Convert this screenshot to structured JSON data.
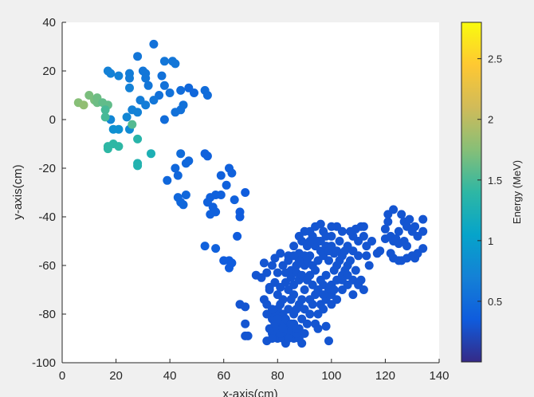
{
  "chart_data": {
    "type": "scatter",
    "title": "",
    "xlabel": "x-axis(cm)",
    "ylabel": "y-axis(cm)",
    "xlim": [
      0,
      140
    ],
    "ylim": [
      -100,
      40
    ],
    "xticks": [
      0,
      20,
      40,
      60,
      80,
      100,
      120,
      140
    ],
    "yticks": [
      40,
      20,
      0,
      -20,
      -40,
      -60,
      -80,
      -100
    ],
    "colorbar": {
      "label": "Energy (MeV)",
      "lim": [
        0,
        2.8
      ],
      "ticks": [
        0.5,
        1,
        1.5,
        2,
        2.5
      ],
      "tick_labels": [
        "0.5",
        "1",
        "1.5",
        "2",
        "2.5"
      ]
    },
    "colormap": "parula",
    "grid": false,
    "background_color": "#f0f0f0",
    "axes_color": "#ffffff",
    "points": [
      [
        34,
        31,
        0.55
      ],
      [
        28,
        26,
        0.6
      ],
      [
        38,
        24,
        0.6
      ],
      [
        41,
        24,
        0.6
      ],
      [
        42,
        23,
        0.6
      ],
      [
        17,
        20,
        0.7
      ],
      [
        18,
        19,
        0.7
      ],
      [
        21,
        18,
        0.7
      ],
      [
        25,
        19,
        0.65
      ],
      [
        25,
        17,
        0.65
      ],
      [
        30,
        20,
        0.6
      ],
      [
        31,
        19,
        0.6
      ],
      [
        31,
        17,
        0.6
      ],
      [
        37,
        18,
        0.55
      ],
      [
        32,
        14,
        0.6
      ],
      [
        38,
        14,
        0.55
      ],
      [
        25,
        13,
        0.7
      ],
      [
        44,
        12,
        0.5
      ],
      [
        47,
        13,
        0.45
      ],
      [
        49,
        11,
        0.45
      ],
      [
        53,
        12,
        0.5
      ],
      [
        54,
        10,
        0.5
      ],
      [
        40,
        11,
        0.55
      ],
      [
        36,
        10,
        0.55
      ],
      [
        34,
        8,
        0.6
      ],
      [
        29,
        8,
        0.65
      ],
      [
        31,
        6,
        0.65
      ],
      [
        26,
        4,
        0.7
      ],
      [
        28,
        3,
        0.7
      ],
      [
        44,
        4,
        0.55
      ],
      [
        42,
        3,
        0.55
      ],
      [
        45,
        6,
        0.55
      ],
      [
        38,
        0,
        0.5
      ],
      [
        24,
        1,
        0.75
      ],
      [
        18,
        0,
        0.75
      ],
      [
        19,
        -4,
        0.85
      ],
      [
        21,
        -4,
        0.85
      ],
      [
        25,
        -4,
        0.8
      ],
      [
        6,
        7,
        1.75
      ],
      [
        8,
        6,
        1.8
      ],
      [
        10,
        10,
        1.7
      ],
      [
        12,
        8,
        1.7
      ],
      [
        13,
        9,
        1.65
      ],
      [
        13,
        7,
        1.65
      ],
      [
        15,
        7,
        1.6
      ],
      [
        17,
        6,
        1.6
      ],
      [
        16,
        4,
        1.5
      ],
      [
        16,
        1,
        1.5
      ],
      [
        26,
        -2,
        1.55
      ],
      [
        28,
        -8,
        1.35
      ],
      [
        17,
        -11,
        1.4
      ],
      [
        17,
        -12,
        1.4
      ],
      [
        19,
        -10,
        1.4
      ],
      [
        21,
        -11,
        1.4
      ],
      [
        28,
        -18,
        1.3
      ],
      [
        28,
        -19,
        1.3
      ],
      [
        33,
        -14,
        1.25
      ],
      [
        44,
        -14,
        0.5
      ],
      [
        46,
        -18,
        0.45
      ],
      [
        47,
        -17,
        0.45
      ],
      [
        42,
        -20,
        0.45
      ],
      [
        43,
        -23,
        0.45
      ],
      [
        39,
        -25,
        0.45
      ],
      [
        53,
        -14,
        0.4
      ],
      [
        54,
        -15,
        0.4
      ],
      [
        62,
        -20,
        0.4
      ],
      [
        63,
        -22,
        0.4
      ],
      [
        59,
        -23,
        0.4
      ],
      [
        61,
        -27,
        0.4
      ],
      [
        46,
        -31,
        0.45
      ],
      [
        43,
        -32,
        0.45
      ],
      [
        44,
        -34,
        0.45
      ],
      [
        45,
        -35,
        0.45
      ],
      [
        55,
        -32,
        0.4
      ],
      [
        57,
        -31,
        0.4
      ],
      [
        59,
        -31,
        0.4
      ],
      [
        54,
        -34,
        0.4
      ],
      [
        56,
        -36,
        0.4
      ],
      [
        57,
        -38,
        0.4
      ],
      [
        55,
        -39,
        0.4
      ],
      [
        64,
        -33,
        0.4
      ],
      [
        68,
        -30,
        0.35
      ],
      [
        66,
        -38,
        0.35
      ],
      [
        66,
        -40,
        0.35
      ],
      [
        65,
        -48,
        0.35
      ],
      [
        53,
        -52,
        0.4
      ],
      [
        57,
        -53,
        0.4
      ],
      [
        60,
        -58,
        0.35
      ],
      [
        62,
        -58,
        0.35
      ],
      [
        62,
        -61,
        0.35
      ],
      [
        63,
        -59,
        0.35
      ],
      [
        66,
        -76,
        0.3
      ],
      [
        68,
        -77,
        0.3
      ],
      [
        68,
        -84,
        0.3
      ],
      [
        68,
        -89,
        0.3
      ],
      [
        69,
        -89,
        0.3
      ],
      [
        72,
        -64,
        0.3
      ],
      [
        74,
        -65,
        0.3
      ],
      [
        75,
        -59,
        0.3
      ],
      [
        76,
        -63,
        0.3
      ],
      [
        77,
        -70,
        0.3
      ],
      [
        75,
        -74,
        0.3
      ],
      [
        76,
        -76,
        0.3
      ],
      [
        78,
        -60,
        0.3
      ],
      [
        79,
        -57,
        0.3
      ],
      [
        80,
        -63,
        0.3
      ],
      [
        81,
        -55,
        0.3
      ],
      [
        82,
        -60,
        0.3
      ],
      [
        83,
        -67,
        0.3
      ],
      [
        84,
        -58,
        0.3
      ],
      [
        85,
        -62,
        0.3
      ],
      [
        86,
        -68,
        0.3
      ],
      [
        87,
        -60,
        0.3
      ],
      [
        88,
        -55,
        0.3
      ],
      [
        89,
        -50,
        0.3
      ],
      [
        90,
        -46,
        0.3
      ],
      [
        91,
        -52,
        0.3
      ],
      [
        92,
        -56,
        0.3
      ],
      [
        93,
        -48,
        0.3
      ],
      [
        94,
        -44,
        0.3
      ],
      [
        95,
        -50,
        0.3
      ],
      [
        96,
        -54,
        0.3
      ],
      [
        97,
        -46,
        0.3
      ],
      [
        98,
        -52,
        0.3
      ],
      [
        99,
        -58,
        0.3
      ],
      [
        100,
        -48,
        0.3
      ],
      [
        101,
        -55,
        0.3
      ],
      [
        102,
        -60,
        0.3
      ],
      [
        103,
        -50,
        0.3
      ],
      [
        104,
        -56,
        0.3
      ],
      [
        105,
        -62,
        0.3
      ],
      [
        106,
        -52,
        0.3
      ],
      [
        107,
        -58,
        0.3
      ],
      [
        108,
        -48,
        0.3
      ],
      [
        109,
        -45,
        0.3
      ],
      [
        110,
        -50,
        0.3
      ],
      [
        111,
        -44,
        0.3
      ],
      [
        112,
        -48,
        0.3
      ],
      [
        113,
        -52,
        0.3
      ],
      [
        90,
        -60,
        0.3
      ],
      [
        92,
        -64,
        0.3
      ],
      [
        94,
        -62,
        0.3
      ],
      [
        96,
        -66,
        0.3
      ],
      [
        98,
        -64,
        0.3
      ],
      [
        100,
        -68,
        0.3
      ],
      [
        102,
        -66,
        0.3
      ],
      [
        104,
        -70,
        0.3
      ],
      [
        106,
        -68,
        0.3
      ],
      [
        108,
        -72,
        0.3
      ],
      [
        88,
        -66,
        0.3
      ],
      [
        86,
        -72,
        0.3
      ],
      [
        84,
        -70,
        0.3
      ],
      [
        82,
        -74,
        0.3
      ],
      [
        80,
        -72,
        0.3
      ],
      [
        90,
        -70,
        0.3
      ],
      [
        92,
        -74,
        0.3
      ],
      [
        94,
        -72,
        0.3
      ],
      [
        96,
        -76,
        0.3
      ],
      [
        98,
        -74,
        0.3
      ],
      [
        100,
        -72,
        0.3
      ],
      [
        88,
        -76,
        0.3
      ],
      [
        90,
        -78,
        0.3
      ],
      [
        86,
        -80,
        0.3
      ],
      [
        84,
        -78,
        0.3
      ],
      [
        82,
        -80,
        0.3
      ],
      [
        80,
        -78,
        0.3
      ],
      [
        79,
        -80,
        0.3
      ],
      [
        78,
        -82,
        0.3
      ],
      [
        77,
        -86,
        0.3
      ],
      [
        78,
        -88,
        0.3
      ],
      [
        80,
        -86,
        0.3
      ],
      [
        82,
        -84,
        0.3
      ],
      [
        84,
        -86,
        0.3
      ],
      [
        86,
        -84,
        0.3
      ],
      [
        88,
        -86,
        0.3
      ],
      [
        90,
        -88,
        0.3
      ],
      [
        80,
        -90,
        0.3
      ],
      [
        82,
        -90,
        0.3
      ],
      [
        84,
        -88,
        0.3
      ],
      [
        86,
        -90,
        0.3
      ],
      [
        88,
        -90,
        0.3
      ],
      [
        89,
        -92,
        0.3
      ],
      [
        76,
        -91,
        0.3
      ],
      [
        78,
        -90,
        0.3
      ],
      [
        94,
        -84,
        0.3
      ],
      [
        95,
        -86,
        0.3
      ],
      [
        98,
        -85,
        0.3
      ],
      [
        99,
        -91,
        0.3
      ],
      [
        92,
        -80,
        0.3
      ],
      [
        95,
        -80,
        0.3
      ],
      [
        97,
        -78,
        0.3
      ],
      [
        100,
        -76,
        0.3
      ],
      [
        102,
        -74,
        0.3
      ],
      [
        104,
        -64,
        0.3
      ],
      [
        106,
        -64,
        0.3
      ],
      [
        108,
        -66,
        0.3
      ],
      [
        109,
        -62,
        0.3
      ],
      [
        110,
        -68,
        0.3
      ],
      [
        111,
        -66,
        0.3
      ],
      [
        112,
        -70,
        0.3
      ],
      [
        113,
        -56,
        0.3
      ],
      [
        114,
        -60,
        0.3
      ],
      [
        115,
        -50,
        0.3
      ],
      [
        117,
        -55,
        0.3
      ],
      [
        118,
        -54,
        0.3
      ],
      [
        121,
        -39,
        0.3
      ],
      [
        123,
        -37,
        0.3
      ],
      [
        126,
        -39,
        0.3
      ],
      [
        127,
        -42,
        0.3
      ],
      [
        128,
        -44,
        0.3
      ],
      [
        129,
        -41,
        0.3
      ],
      [
        130,
        -46,
        0.3
      ],
      [
        131,
        -44,
        0.3
      ],
      [
        132,
        -48,
        0.3
      ],
      [
        134,
        -41,
        0.3
      ],
      [
        134,
        -46,
        0.3
      ],
      [
        125,
        -46,
        0.3
      ],
      [
        121,
        -42,
        0.3
      ],
      [
        120,
        -45,
        0.3
      ],
      [
        120,
        -49,
        0.3
      ],
      [
        122,
        -48,
        0.3
      ],
      [
        123,
        -50,
        0.3
      ],
      [
        124,
        -49,
        0.3
      ],
      [
        125,
        -51,
        0.3
      ],
      [
        127,
        -50,
        0.3
      ],
      [
        128,
        -52,
        0.3
      ],
      [
        122,
        -55,
        0.3
      ],
      [
        123,
        -57,
        0.3
      ],
      [
        125,
        -58,
        0.3
      ],
      [
        126,
        -58,
        0.3
      ],
      [
        128,
        -57,
        0.3
      ],
      [
        130,
        -56,
        0.3
      ],
      [
        131,
        -57,
        0.3
      ],
      [
        132,
        -55,
        0.3
      ],
      [
        134,
        -53,
        0.3
      ],
      [
        77,
        -69,
        0.3
      ],
      [
        79,
        -67,
        0.3
      ],
      [
        81,
        -69,
        0.3
      ],
      [
        83,
        -63,
        0.3
      ],
      [
        85,
        -65,
        0.3
      ],
      [
        87,
        -63,
        0.3
      ],
      [
        89,
        -64,
        0.3
      ],
      [
        91,
        -58,
        0.3
      ],
      [
        93,
        -60,
        0.3
      ],
      [
        95,
        -58,
        0.3
      ],
      [
        97,
        -56,
        0.3
      ],
      [
        99,
        -54,
        0.3
      ],
      [
        91,
        -66,
        0.3
      ],
      [
        93,
        -68,
        0.3
      ],
      [
        95,
        -70,
        0.3
      ],
      [
        97,
        -68,
        0.3
      ],
      [
        99,
        -70,
        0.3
      ],
      [
        101,
        -62,
        0.3
      ],
      [
        103,
        -58,
        0.3
      ],
      [
        105,
        -54,
        0.3
      ],
      [
        107,
        -46,
        0.3
      ],
      [
        104,
        -46,
        0.3
      ],
      [
        102,
        -44,
        0.3
      ],
      [
        100,
        -44,
        0.3
      ],
      [
        96,
        -43,
        0.3
      ],
      [
        92,
        -46,
        0.3
      ],
      [
        88,
        -48,
        0.3
      ],
      [
        86,
        -52,
        0.3
      ],
      [
        84,
        -56,
        0.3
      ],
      [
        83,
        -82,
        0.3
      ],
      [
        85,
        -74,
        0.3
      ],
      [
        87,
        -78,
        0.3
      ],
      [
        89,
        -82,
        0.3
      ],
      [
        91,
        -84,
        0.3
      ],
      [
        81,
        -76,
        0.3
      ],
      [
        79,
        -84,
        0.3
      ],
      [
        81,
        -88,
        0.3
      ],
      [
        83,
        -92,
        0.3
      ],
      [
        85,
        -88,
        0.3
      ],
      [
        87,
        -88,
        0.3
      ],
      [
        76,
        -80,
        0.3
      ],
      [
        78,
        -78,
        0.3
      ],
      [
        94,
        -52,
        0.3
      ],
      [
        96,
        -50,
        0.3
      ],
      [
        98,
        -48,
        0.3
      ],
      [
        100,
        -52,
        0.3
      ],
      [
        102,
        -54,
        0.3
      ],
      [
        92,
        -50,
        0.3
      ],
      [
        90,
        -56,
        0.3
      ],
      [
        88,
        -58,
        0.3
      ],
      [
        86,
        -56,
        0.3
      ],
      [
        110,
        -56,
        0.3
      ],
      [
        112,
        -44,
        0.3
      ],
      [
        108,
        -54,
        0.3
      ],
      [
        106,
        -60,
        0.3
      ],
      [
        104,
        -66,
        0.3
      ],
      [
        101,
        -70,
        0.3
      ],
      [
        97,
        -72,
        0.3
      ],
      [
        93,
        -76,
        0.3
      ],
      [
        89,
        -74,
        0.3
      ],
      [
        85,
        -84,
        0.3
      ],
      [
        87,
        -86,
        0.3
      ],
      [
        80,
        -82,
        0.3
      ],
      [
        82,
        -86,
        0.3
      ],
      [
        84,
        -90,
        0.3
      ]
    ]
  }
}
